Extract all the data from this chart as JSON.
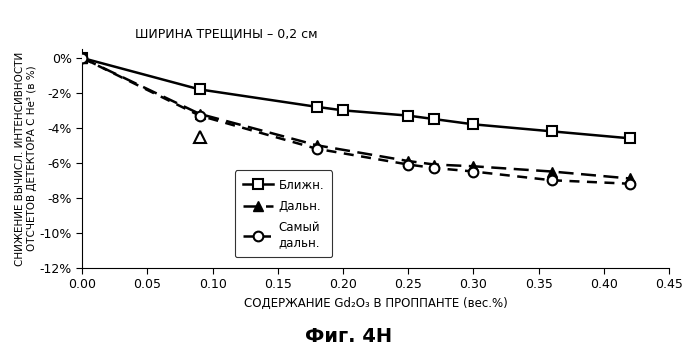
{
  "title_annotation": "ШИРИНА ТРЕЩИНЫ – 0,2 см",
  "xlabel": "СОДЕРЖАНИЕ Gd₂O₃ В ПРОППАНТЕ (вес.%)",
  "ylabel": "СНИЖЕНИЕ ВЫЧИСЛ. ИНТЕНСИВНОСТИ\nОТСЧЕТОВ ДЕТЕКТОРА С He³ (в %)",
  "fig_label": "Фиг. 4Н",
  "xlim": [
    0.0,
    0.45
  ],
  "ylim": [
    -12,
    0.5
  ],
  "xticks": [
    0.0,
    0.05,
    0.1,
    0.15,
    0.2,
    0.25,
    0.3,
    0.35,
    0.4,
    0.45
  ],
  "yticks": [
    0,
    -2,
    -4,
    -6,
    -8,
    -10,
    -12
  ],
  "ytick_labels": [
    "0%",
    "-2%",
    "-4%",
    "-6%",
    "-8%",
    "-10%",
    "-12%"
  ],
  "line1_label": "Ближн.",
  "line1_x": [
    0.0,
    0.09,
    0.18,
    0.2,
    0.25,
    0.27,
    0.3,
    0.36,
    0.42
  ],
  "line1_y": [
    0.0,
    -1.8,
    -2.8,
    -3.0,
    -3.3,
    -3.5,
    -3.8,
    -4.2,
    -4.6
  ],
  "line2_label": "Дальн.",
  "line2_x": [
    0.0,
    0.09,
    0.18,
    0.25,
    0.27,
    0.3,
    0.36,
    0.42
  ],
  "line2_y": [
    0.0,
    -3.2,
    -5.0,
    -5.9,
    -6.1,
    -6.2,
    -6.5,
    -6.9
  ],
  "line2_extra_x": [
    0.09
  ],
  "line2_extra_y": [
    -4.5
  ],
  "line3_label": "Самый\nдальн.",
  "line3_x": [
    0.0,
    0.09,
    0.18,
    0.25,
    0.27,
    0.3,
    0.36,
    0.42
  ],
  "line3_y": [
    0.0,
    -3.3,
    -5.2,
    -6.1,
    -6.3,
    -6.5,
    -7.0,
    -7.2
  ],
  "line_color": "#000000",
  "bg_color": "#ffffff"
}
